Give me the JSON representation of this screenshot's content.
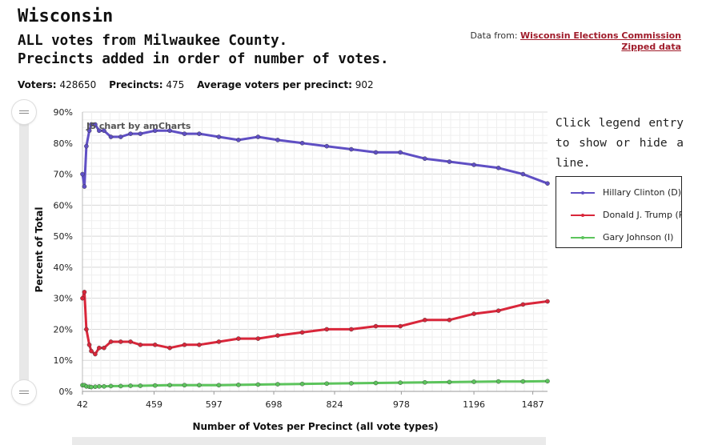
{
  "header": {
    "title": "Wisconsin",
    "subtitle_line1": "ALL votes from Milwaukee County.",
    "subtitle_line2": "Precincts added in order of number of votes."
  },
  "source": {
    "prefix": "Data from: ",
    "link1": "Wisconsin Elections Commission",
    "link2": "Zipped data"
  },
  "stats": {
    "voters_label": "Voters:",
    "voters_value": "428650",
    "precincts_label": "Precincts:",
    "precincts_value": "475",
    "avg_label": "Average voters per precinct:",
    "avg_value": "902"
  },
  "hint": "Click legend entry to show or hide a line.",
  "credit": "JS chart by amCharts",
  "colors": {
    "clinton": "#5f4fc4",
    "trump": "#d9263a",
    "johnson": "#5cc45c",
    "grid": "#e3e3e3"
  },
  "chart_data": {
    "type": "line",
    "xlabel": "Number of Votes per Precinct (all vote types)",
    "ylabel": "Percent of Total",
    "x_tick_labels": [
      "42",
      "459",
      "597",
      "698",
      "824",
      "978",
      "1196",
      "1487"
    ],
    "ylim": [
      0,
      90
    ],
    "y_ticks": [
      "0%",
      "10%",
      "20%",
      "30%",
      "40%",
      "50%",
      "60%",
      "70%",
      "80%",
      "90%"
    ],
    "grid": true,
    "legend_placement": "right",
    "x_precinct_index": [
      1,
      3,
      5,
      8,
      10,
      14,
      18,
      23,
      30,
      40,
      50,
      60,
      75,
      90,
      105,
      120,
      140,
      160,
      180,
      200,
      225,
      250,
      275,
      300,
      325,
      350,
      375,
      400,
      425,
      450,
      475
    ],
    "x_tick_positions": [
      1,
      74,
      135,
      196,
      258,
      326,
      400,
      460
    ],
    "series": [
      {
        "name": "Hillary Clinton (D)",
        "values": [
          70,
          66,
          79,
          84,
          86,
          86,
          84,
          84,
          82,
          82,
          83,
          83,
          84,
          84,
          83,
          83,
          82,
          81,
          82,
          81,
          80,
          79,
          78,
          77,
          77,
          75,
          74,
          73,
          72,
          70,
          67
        ]
      },
      {
        "name": "Donald J. Trump (R)",
        "values": [
          30,
          32,
          20,
          15,
          13,
          12,
          14,
          14,
          16,
          16,
          16,
          15,
          15,
          14,
          15,
          15,
          16,
          17,
          17,
          18,
          19,
          20,
          20,
          21,
          21,
          23,
          23,
          25,
          26,
          28,
          29
        ]
      },
      {
        "name": "Gary Johnson (I)",
        "values": [
          2,
          2,
          1.6,
          1.5,
          1.4,
          1.5,
          1.6,
          1.6,
          1.7,
          1.7,
          1.8,
          1.8,
          1.9,
          2,
          2,
          2,
          2,
          2.1,
          2.2,
          2.3,
          2.4,
          2.5,
          2.6,
          2.7,
          2.8,
          2.9,
          3,
          3.1,
          3.2,
          3.2,
          3.3
        ]
      }
    ]
  }
}
